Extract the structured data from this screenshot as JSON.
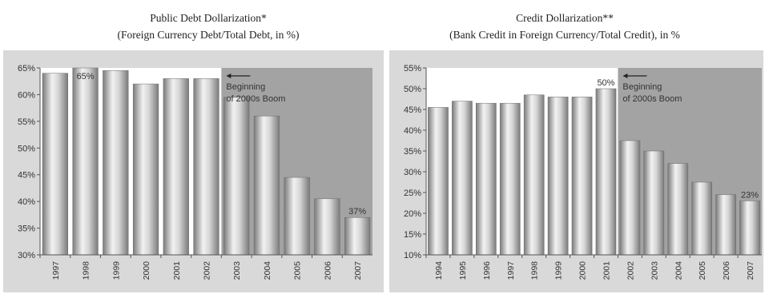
{
  "colors": {
    "panel_bg": "#d9d9d9",
    "plot_bg": "#ffffff",
    "shade": "#a3a3a3",
    "bar_dark": "#7a7a7a",
    "bar_light": "#f2f2f2",
    "text": "#333333"
  },
  "chart_data": [
    {
      "type": "bar",
      "title": "Public Debt Dollarization*",
      "subtitle": "(Foreign Currency Debt/Total Debt, in %)",
      "categories": [
        "1997",
        "1998",
        "1999",
        "2000",
        "2001",
        "2002",
        "2003",
        "2004",
        "2005",
        "2006",
        "2007"
      ],
      "values": [
        64,
        65,
        64.5,
        62,
        63,
        63,
        59.5,
        56,
        44.5,
        40.5,
        37
      ],
      "ylim": [
        30,
        65
      ],
      "yticks": [
        30,
        35,
        40,
        45,
        50,
        55,
        60,
        65
      ],
      "ytick_labels": [
        "30%",
        "35%",
        "40%",
        "45%",
        "50%",
        "55%",
        "60%",
        "65%"
      ],
      "shade_from": "2003",
      "annotation_lines": [
        "Beginning",
        "of 2000s Boom"
      ],
      "data_labels": [
        {
          "category": "1998",
          "text": "65%"
        },
        {
          "category": "2007",
          "text": "37%"
        }
      ],
      "grid": false
    },
    {
      "type": "bar",
      "title": "Credit Dollarization**",
      "subtitle": "(Bank Credit in Foreign Currency/Total Credit), in %",
      "categories": [
        "1994",
        "1995",
        "1996",
        "1997",
        "1998",
        "1999",
        "2000",
        "2001",
        "2002",
        "2003",
        "2004",
        "2005",
        "2006",
        "2007"
      ],
      "values": [
        45.5,
        47,
        46.5,
        46.5,
        48.5,
        48,
        48,
        50,
        37.5,
        35,
        32,
        27.5,
        24.5,
        23
      ],
      "ylim": [
        10,
        55
      ],
      "yticks": [
        10,
        15,
        20,
        25,
        30,
        35,
        40,
        45,
        50,
        55
      ],
      "ytick_labels": [
        "10%",
        "15%",
        "20%",
        "25%",
        "30%",
        "35%",
        "40%",
        "45%",
        "50%",
        "55%"
      ],
      "shade_from": "2002",
      "annotation_lines": [
        "Beginning",
        "of 2000s Boom"
      ],
      "data_labels": [
        {
          "category": "2001",
          "text": "50%"
        },
        {
          "category": "2007",
          "text": "23%"
        }
      ],
      "grid": false
    }
  ]
}
